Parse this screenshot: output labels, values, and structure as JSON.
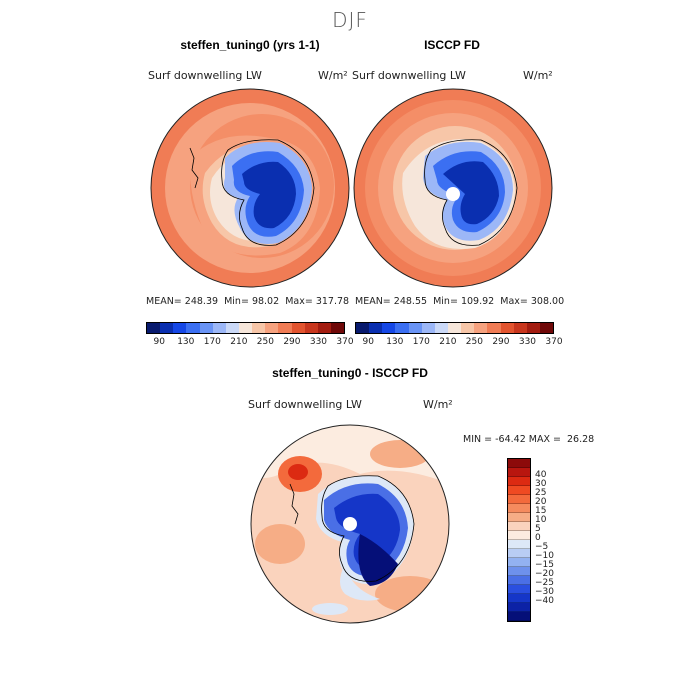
{
  "title": "DJF",
  "panels": [
    {
      "title": "steffen_tuning0 (yrs 1-1)",
      "variable": "Surf downwelling LW",
      "units": "W/m²",
      "stats": {
        "mean": "248.39",
        "min": "98.02",
        "max": "317.78"
      }
    },
    {
      "title": "ISCCP FD",
      "variable": "Surf downwelling LW",
      "units": "W/m²",
      "stats": {
        "mean": "248.55",
        "min": "109.92",
        "max": "308.00"
      }
    }
  ],
  "stats_labels": {
    "mean": "MEAN=",
    "min": "Min=",
    "max": "Max="
  },
  "abs_colorbar": {
    "colors": [
      "#081a6e",
      "#0a2fb0",
      "#1547e6",
      "#3b6ff2",
      "#6a94f5",
      "#9cb7f7",
      "#cbd9f7",
      "#f6e6da",
      "#f7c6a8",
      "#f6a27f",
      "#f07c55",
      "#e2542f",
      "#c8361d",
      "#a31c10",
      "#6f0808"
    ],
    "ticks": [
      "90",
      "130",
      "170",
      "210",
      "250",
      "290",
      "330",
      "370"
    ]
  },
  "diff_panel": {
    "title": "steffen_tuning0 - ISCCP FD",
    "variable": "Surf downwelling LW",
    "units": "W/m²",
    "min_label": "MIN =",
    "min": "-64.42",
    "max_label": "MAX =",
    "max": "26.28"
  },
  "diff_colorbar": {
    "colors": [
      "#8c0a0a",
      "#b8160f",
      "#dc2a12",
      "#ef4a22",
      "#f36a3c",
      "#f58b5e",
      "#f6ad86",
      "#fad3bd",
      "#fcece0",
      "#dde8f7",
      "#b9cdf4",
      "#93b2f1",
      "#6e91ec",
      "#4a6fe6",
      "#2a4fe0",
      "#1536c8",
      "#0c22a6",
      "#050f78"
    ],
    "ticks": [
      "40",
      "30",
      "25",
      "20",
      "15",
      "10",
      "5",
      "0",
      "−5",
      "−10",
      "−15",
      "−20",
      "−25",
      "−30",
      "−40"
    ]
  }
}
